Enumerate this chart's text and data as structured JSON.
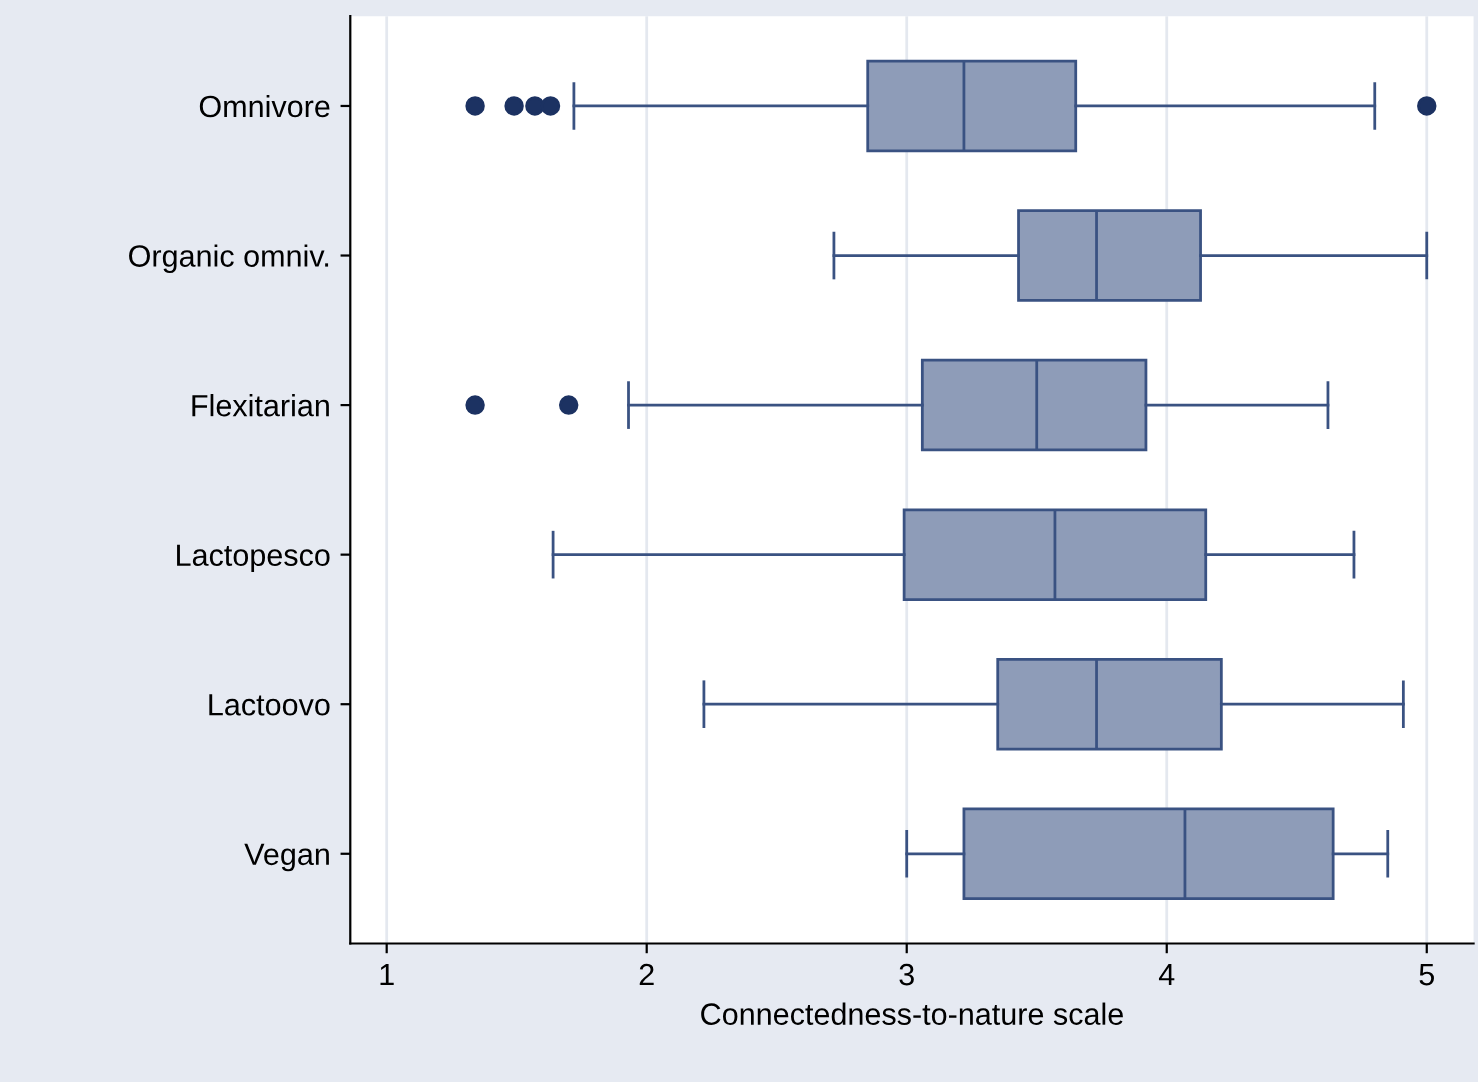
{
  "chart_data": {
    "type": "box",
    "orientation": "horizontal",
    "xlabel": "Connectedness-to-nature scale",
    "categories": [
      "Omnivore",
      "Organic omniv.",
      "Flexitarian",
      "Lactopesco",
      "Lactoovo",
      "Vegan"
    ],
    "boxes": [
      {
        "low": 1.72,
        "q1": 2.85,
        "median": 3.22,
        "q3": 3.65,
        "high": 4.8,
        "outliers": [
          1.34,
          1.49,
          1.57,
          1.63,
          5.0
        ]
      },
      {
        "low": 2.72,
        "q1": 3.43,
        "median": 3.73,
        "q3": 4.13,
        "high": 5.0
      },
      {
        "low": 1.93,
        "q1": 3.06,
        "median": 3.5,
        "q3": 3.92,
        "high": 4.62,
        "outliers": [
          1.34,
          1.7
        ]
      },
      {
        "low": 1.64,
        "q1": 2.99,
        "median": 3.57,
        "q3": 4.15,
        "high": 4.72
      },
      {
        "low": 2.22,
        "q1": 3.35,
        "median": 3.73,
        "q3": 4.21,
        "high": 4.91
      },
      {
        "low": 3.0,
        "q1": 3.22,
        "median": 4.07,
        "q3": 4.64,
        "high": 4.85
      }
    ],
    "color": "#8e9cb8",
    "xlim": [
      0.86,
      5.18
    ],
    "xticks": [
      1,
      2,
      3,
      4,
      5
    ],
    "grid": "x",
    "legend": false
  }
}
